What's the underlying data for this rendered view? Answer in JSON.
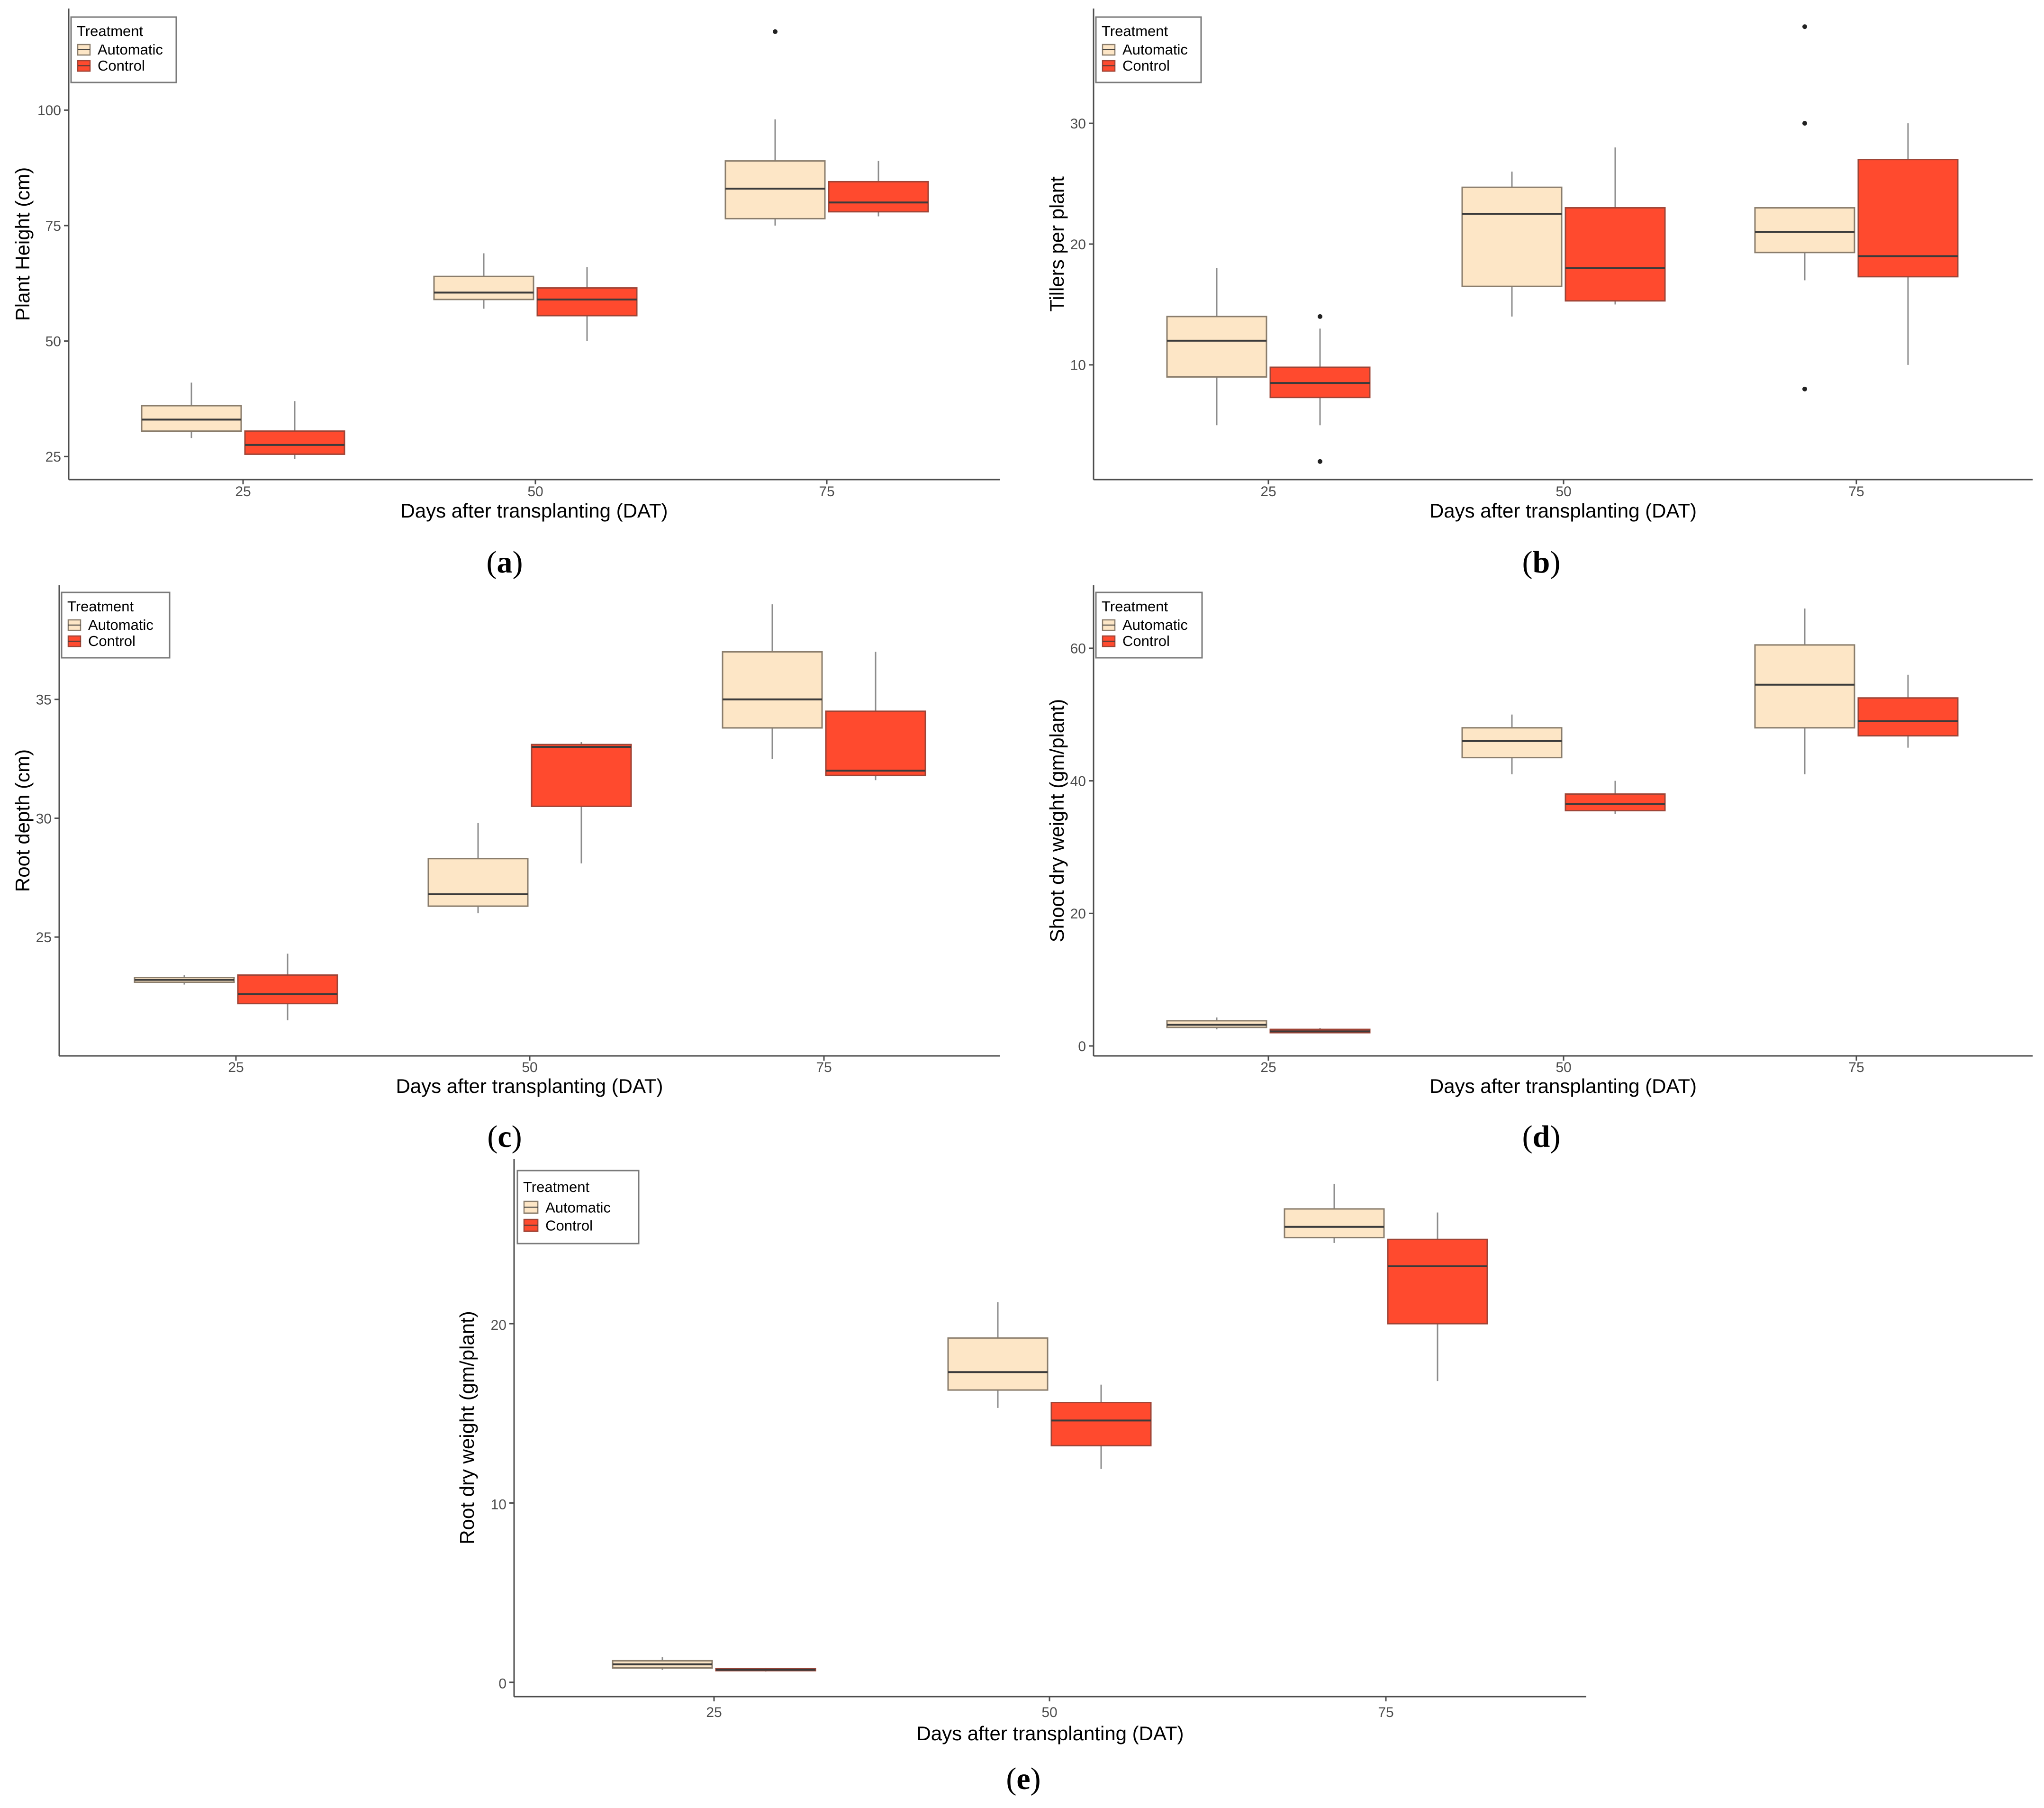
{
  "colors": {
    "automatic_fill": "#FDE6C6",
    "automatic_stroke": "#8A7D6C",
    "control_fill": "#FF4A2E",
    "control_stroke": "#9E4436",
    "median": "#3b3b3b",
    "axis": "#4d4d4d",
    "whisker": "#8c8c8c"
  },
  "legend": {
    "title": "Treatment",
    "entries": [
      "Automatic",
      "Control"
    ]
  },
  "chart_data": [
    {
      "type": "box",
      "panel": "a",
      "panel_label": "a",
      "xlabel": "Days after transplanting (DAT)",
      "ylabel": "Plant Height (cm)",
      "categories": [
        "25",
        "50",
        "75"
      ],
      "ylim": [
        20,
        122
      ],
      "yticks": [
        25,
        50,
        75,
        100
      ],
      "ytick_labels": [
        "25",
        "50",
        "75",
        "100"
      ],
      "legend_position": "top-left",
      "series": [
        {
          "name": "Automatic",
          "boxes": [
            {
              "min": 29,
              "q1": 30.5,
              "median": 33,
              "q3": 36,
              "max": 41,
              "outliers": []
            },
            {
              "min": 57,
              "q1": 59,
              "median": 60.5,
              "q3": 64,
              "max": 69,
              "outliers": []
            },
            {
              "min": 75,
              "q1": 76.5,
              "median": 83,
              "q3": 89,
              "max": 98,
              "outliers": [
                117
              ]
            }
          ]
        },
        {
          "name": "Control",
          "boxes": [
            {
              "min": 24.5,
              "q1": 25.5,
              "median": 27.5,
              "q3": 30.5,
              "max": 37,
              "outliers": []
            },
            {
              "min": 50,
              "q1": 55.5,
              "median": 59,
              "q3": 61.5,
              "max": 66,
              "outliers": []
            },
            {
              "min": 77,
              "q1": 78,
              "median": 80,
              "q3": 84.5,
              "max": 89,
              "outliers": []
            }
          ]
        }
      ]
    },
    {
      "type": "box",
      "panel": "b",
      "panel_label": "b",
      "xlabel": "Days after transplanting (DAT)",
      "ylabel": "Tillers per plant",
      "categories": [
        "25",
        "50",
        "75"
      ],
      "ylim": [
        0.5,
        39.5
      ],
      "yticks": [
        10,
        20,
        30
      ],
      "ytick_labels": [
        "10",
        "20",
        "30"
      ],
      "legend_position": "top-left",
      "series": [
        {
          "name": "Automatic",
          "boxes": [
            {
              "min": 5,
              "q1": 9,
              "median": 12,
              "q3": 14,
              "max": 18,
              "outliers": []
            },
            {
              "min": 14,
              "q1": 16.5,
              "median": 22.5,
              "q3": 24.7,
              "max": 26,
              "outliers": []
            },
            {
              "min": 17,
              "q1": 19.3,
              "median": 21,
              "q3": 23,
              "max": 23,
              "outliers": [
                8,
                30,
                38
              ]
            }
          ]
        },
        {
          "name": "Control",
          "boxes": [
            {
              "min": 5,
              "q1": 7.3,
              "median": 8.5,
              "q3": 9.8,
              "max": 13,
              "outliers": [
                2,
                14
              ]
            },
            {
              "min": 15,
              "q1": 15.3,
              "median": 18,
              "q3": 23,
              "max": 28,
              "outliers": []
            },
            {
              "min": 10,
              "q1": 17.3,
              "median": 19,
              "q3": 27,
              "max": 30,
              "outliers": []
            }
          ]
        }
      ]
    },
    {
      "type": "box",
      "panel": "c",
      "panel_label": "c",
      "xlabel": "Days after transplanting (DAT)",
      "ylabel": "Root depth (cm)",
      "categories": [
        "25",
        "50",
        "75"
      ],
      "ylim": [
        20,
        39.8
      ],
      "yticks": [
        25,
        30,
        35
      ],
      "ytick_labels": [
        "25",
        "30",
        "35"
      ],
      "legend_position": "top-left",
      "series": [
        {
          "name": "Automatic",
          "boxes": [
            {
              "min": 23,
              "q1": 23.1,
              "median": 23.2,
              "q3": 23.3,
              "max": 23.4,
              "outliers": []
            },
            {
              "min": 26,
              "q1": 26.3,
              "median": 26.8,
              "q3": 28.3,
              "max": 29.8,
              "outliers": []
            },
            {
              "min": 32.5,
              "q1": 33.8,
              "median": 35,
              "q3": 37,
              "max": 39,
              "outliers": []
            }
          ]
        },
        {
          "name": "Control",
          "boxes": [
            {
              "min": 21.5,
              "q1": 22.2,
              "median": 22.6,
              "q3": 23.4,
              "max": 24.3,
              "outliers": []
            },
            {
              "min": 28.1,
              "q1": 30.5,
              "median": 33,
              "q3": 33.1,
              "max": 33.2,
              "outliers": []
            },
            {
              "min": 31.6,
              "q1": 31.8,
              "median": 32,
              "q3": 34.5,
              "max": 37,
              "outliers": []
            }
          ]
        }
      ]
    },
    {
      "type": "box",
      "panel": "d",
      "panel_label": "d",
      "xlabel": "Days after transplanting (DAT)",
      "ylabel": "Shoot dry weight (gm/plant)",
      "categories": [
        "25",
        "50",
        "75"
      ],
      "ylim": [
        -1.5,
        69.5
      ],
      "yticks": [
        0,
        20,
        40,
        60
      ],
      "ytick_labels": [
        "0",
        "20",
        "40",
        "60"
      ],
      "legend_position": "top-left",
      "series": [
        {
          "name": "Automatic",
          "boxes": [
            {
              "min": 2.5,
              "q1": 2.8,
              "median": 3.2,
              "q3": 3.8,
              "max": 4.3,
              "outliers": []
            },
            {
              "min": 41,
              "q1": 43.5,
              "median": 46,
              "q3": 48,
              "max": 50,
              "outliers": []
            },
            {
              "min": 41,
              "q1": 48,
              "median": 54.5,
              "q3": 60.5,
              "max": 66,
              "outliers": []
            }
          ]
        },
        {
          "name": "Control",
          "boxes": [
            {
              "min": 1.9,
              "q1": 2,
              "median": 2.2,
              "q3": 2.5,
              "max": 2.7,
              "outliers": []
            },
            {
              "min": 35,
              "q1": 35.5,
              "median": 36.5,
              "q3": 38,
              "max": 40,
              "outliers": []
            },
            {
              "min": 45,
              "q1": 46.8,
              "median": 49,
              "q3": 52.5,
              "max": 56,
              "outliers": []
            }
          ]
        }
      ]
    },
    {
      "type": "box",
      "panel": "e",
      "panel_label": "e",
      "xlabel": "Days after transplanting (DAT)",
      "ylabel": "Root dry weight (gm/plant)",
      "categories": [
        "25",
        "50",
        "75"
      ],
      "ylim": [
        -0.8,
        29.2
      ],
      "yticks": [
        0,
        10,
        20
      ],
      "ytick_labels": [
        "0",
        "10",
        "20"
      ],
      "legend_position": "top-left",
      "series": [
        {
          "name": "Automatic",
          "boxes": [
            {
              "min": 0.7,
              "q1": 0.8,
              "median": 1,
              "q3": 1.2,
              "max": 1.4,
              "outliers": []
            },
            {
              "min": 15.3,
              "q1": 16.3,
              "median": 17.3,
              "q3": 19.2,
              "max": 21.2,
              "outliers": []
            },
            {
              "min": 24.5,
              "q1": 24.8,
              "median": 25.4,
              "q3": 26.4,
              "max": 27.8,
              "outliers": []
            }
          ]
        },
        {
          "name": "Control",
          "boxes": [
            {
              "min": 0.6,
              "q1": 0.65,
              "median": 0.7,
              "q3": 0.75,
              "max": 0.8,
              "outliers": []
            },
            {
              "min": 11.9,
              "q1": 13.2,
              "median": 14.6,
              "q3": 15.6,
              "max": 16.6,
              "outliers": []
            },
            {
              "min": 16.8,
              "q1": 20,
              "median": 23.2,
              "q3": 24.7,
              "max": 26.2,
              "outliers": []
            }
          ]
        }
      ]
    }
  ]
}
